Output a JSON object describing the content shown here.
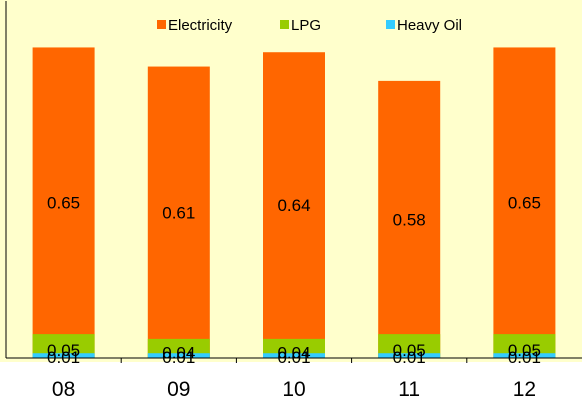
{
  "chart_data": {
    "type": "bar",
    "stacked": true,
    "categories": [
      "08",
      "09",
      "10",
      "11",
      "12"
    ],
    "series": [
      {
        "name": "Electricity",
        "color": "#FF6600",
        "values": [
          0.65,
          0.61,
          0.64,
          0.58,
          0.65
        ]
      },
      {
        "name": "LPG",
        "color": "#99CC00",
        "values": [
          0.05,
          0.04,
          0.04,
          0.05,
          0.05
        ]
      },
      {
        "name": "Heavy Oil",
        "color": "#33CCFF",
        "values": [
          0.01,
          0.01,
          0.01,
          0.01,
          0.01
        ]
      }
    ],
    "ylim": [
      0,
      0.72
    ],
    "grid": false,
    "legend_position": "top",
    "plot_background": "#FFFFCC"
  }
}
